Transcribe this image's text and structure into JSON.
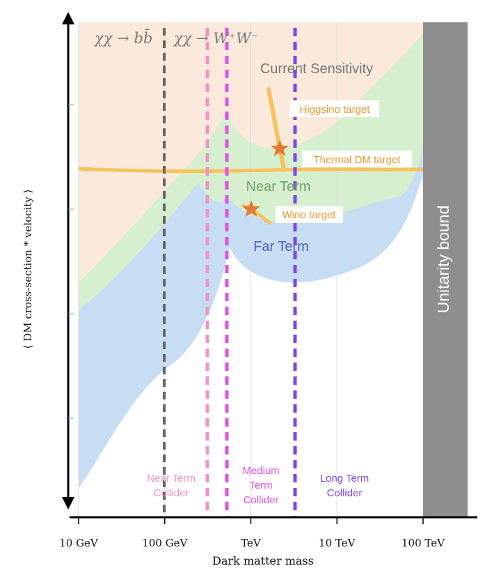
{
  "chart_data": {
    "type": "area",
    "xlabel": "Dark matter mass",
    "ylabel": "⟨ DM cross-section * velocity ⟩",
    "x_scale": "log",
    "x_ticks": [
      {
        "value": 10,
        "label": "10 GeV"
      },
      {
        "value": 100,
        "label": "100 GeV"
      },
      {
        "value": 1000,
        "label": "TeV"
      },
      {
        "value": 10000,
        "label": "10 TeV"
      },
      {
        "value": 100000,
        "label": "100 TeV"
      }
    ],
    "regions": [
      {
        "name": "Current Sensitivity",
        "color": "#fbe9dc"
      },
      {
        "name": "Near Term",
        "color": "#d6efcf"
      },
      {
        "name": "Far Term",
        "color": "#c6ddf3"
      }
    ],
    "bands": [
      {
        "name": "Thermal DM target",
        "color": "#f7c15c"
      },
      {
        "name": "Higgsino target",
        "color": "#f7c15c"
      },
      {
        "name": "Wino target",
        "color": "#f7c15c"
      }
    ],
    "channel_labels": [
      {
        "text": "χχ → bb̄"
      },
      {
        "text": "χχ → W⁺W⁻"
      }
    ],
    "colliders": [
      {
        "name": "Near Term Collider",
        "line1": "Near Term",
        "line2": "Collider",
        "line3": "",
        "color": "#f093c6"
      },
      {
        "name": "Medium Term Collider",
        "line1": "Medium",
        "line2": "Term",
        "line3": "Collider",
        "color": "#e052e6"
      },
      {
        "name": "Long Term Collider",
        "line1": "Long Term",
        "line2": "Collider",
        "line3": "",
        "color": "#7d45ee"
      }
    ],
    "unitarity_label": "Unitarity bound",
    "unitarity_color": "#8e8e8e"
  }
}
